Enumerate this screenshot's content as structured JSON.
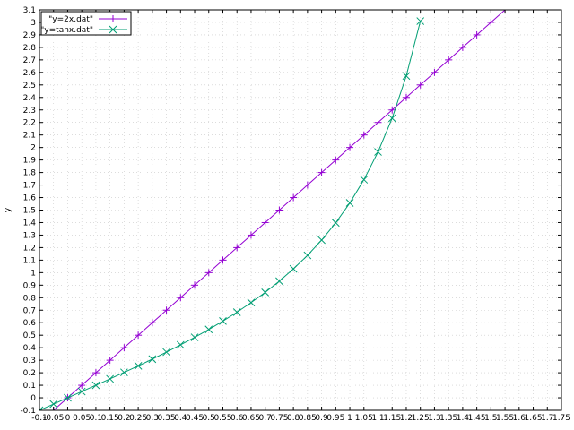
{
  "chart_data": {
    "type": "line",
    "ylabel": "y",
    "xlabel": "",
    "title": "",
    "xlim": [
      -0.1,
      1.75
    ],
    "ylim": [
      -0.1,
      3.1
    ],
    "xticks": [
      "-0.1",
      "-0.05",
      "0",
      "0.05",
      "0.1",
      "0.15",
      "0.2",
      "0.25",
      "0.3",
      "0.35",
      "0.4",
      "0.45",
      "0.5",
      "0.55",
      "0.6",
      "0.65",
      "0.7",
      "0.75",
      "0.8",
      "0.85",
      "0.9",
      "0.95",
      "1",
      "1.05",
      "1.1",
      "1.15",
      "1.2",
      "1.25",
      "1.3",
      "1.35",
      "1.4",
      "1.45",
      "1.5",
      "1.55",
      "1.6",
      "1.65",
      "1.7",
      "1.75"
    ],
    "yticks": [
      "-0.1",
      "0",
      "0.1",
      "0.2",
      "0.3",
      "0.4",
      "0.5",
      "0.6",
      "0.7",
      "0.8",
      "0.9",
      "1",
      "1.1",
      "1.2",
      "1.3",
      "1.4",
      "1.5",
      "1.6",
      "1.7",
      "1.8",
      "1.9",
      "2",
      "2.1",
      "2.2",
      "2.3",
      "2.4",
      "2.5",
      "2.6",
      "2.7",
      "2.8",
      "2.9",
      "3",
      "3.1"
    ],
    "grid": true,
    "legend_position": "top-left",
    "series": [
      {
        "name": "\"y=2x.dat\"",
        "color": "#9400d3",
        "marker": "plus",
        "x": [
          -0.05,
          0,
          0.05,
          0.1,
          0.15,
          0.2,
          0.25,
          0.3,
          0.35,
          0.4,
          0.45,
          0.5,
          0.55,
          0.6,
          0.65,
          0.7,
          0.75,
          0.8,
          0.85,
          0.9,
          0.95,
          1,
          1.05,
          1.1,
          1.15,
          1.2,
          1.25,
          1.3,
          1.35,
          1.4,
          1.45,
          1.5,
          1.55
        ],
        "y": [
          -0.1,
          0,
          0.1,
          0.2,
          0.3,
          0.4,
          0.5,
          0.6,
          0.7,
          0.8,
          0.9,
          1,
          1.1,
          1.2,
          1.3,
          1.4,
          1.5,
          1.6,
          1.7,
          1.8,
          1.9,
          2,
          2.1,
          2.2,
          2.3,
          2.4,
          2.5,
          2.6,
          2.7,
          2.8,
          2.9,
          3,
          3.1
        ]
      },
      {
        "name": "\"y=tanx.dat\"",
        "color": "#009e73",
        "marker": "x",
        "x": [
          -0.1,
          -0.05,
          0,
          0.05,
          0.1,
          0.15,
          0.2,
          0.25,
          0.3,
          0.35,
          0.4,
          0.45,
          0.5,
          0.55,
          0.6,
          0.65,
          0.7,
          0.75,
          0.8,
          0.85,
          0.9,
          0.95,
          1,
          1.05,
          1.1,
          1.15,
          1.2,
          1.25
        ],
        "y": [
          -0.1,
          -0.05,
          0,
          0.05,
          0.1,
          0.151,
          0.203,
          0.255,
          0.309,
          0.365,
          0.423,
          0.483,
          0.546,
          0.613,
          0.684,
          0.761,
          0.842,
          0.932,
          1.03,
          1.138,
          1.26,
          1.398,
          1.557,
          1.743,
          1.965,
          2.234,
          2.572,
          3.01
        ]
      }
    ]
  }
}
